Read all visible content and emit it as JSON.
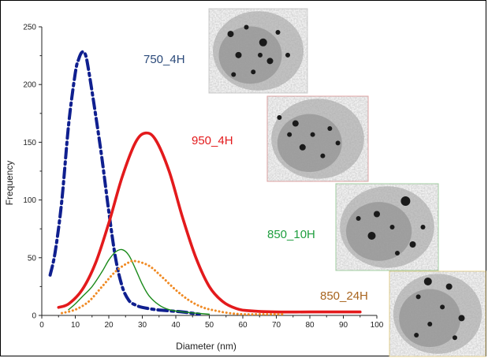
{
  "chart_data": {
    "type": "line",
    "title": "",
    "xlabel": "Diameter (nm)",
    "ylabel": "Frequency",
    "xlim": [
      0,
      100
    ],
    "ylim": [
      0,
      250
    ],
    "xticks": [
      0,
      10,
      20,
      30,
      40,
      50,
      60,
      70,
      80,
      90,
      100
    ],
    "yticks": [
      0,
      50,
      100,
      150,
      200,
      250
    ],
    "grid": false,
    "legend": "inline labels beside TEM image insets",
    "series": [
      {
        "name": "750_4H",
        "color": "#0f1f8f",
        "style": "dash-dot",
        "x": [
          2.5,
          4,
          6,
          8,
          10,
          11,
          12,
          13,
          14,
          16,
          18,
          20,
          22,
          24,
          26,
          28,
          30,
          34,
          38,
          42,
          47
        ],
        "y": [
          35,
          55,
          100,
          165,
          210,
          222,
          228,
          226,
          212,
          175,
          135,
          90,
          50,
          25,
          13,
          9,
          7,
          5,
          4,
          3,
          1
        ]
      },
      {
        "name": "950_4H",
        "color": "#e31a1c",
        "style": "solid-thick",
        "x": [
          5,
          8,
          12,
          16,
          20,
          24,
          28,
          31,
          34,
          38,
          42,
          46,
          50,
          54,
          58,
          62,
          70,
          80,
          95
        ],
        "y": [
          7,
          10,
          22,
          45,
          80,
          120,
          150,
          158,
          152,
          125,
          85,
          50,
          25,
          12,
          6,
          4,
          3,
          3,
          3
        ]
      },
      {
        "name": "850_10H",
        "color": "#1a8a1a",
        "style": "solid-thin",
        "x": [
          8,
          10,
          12,
          15,
          18,
          20,
          22,
          24,
          26,
          28,
          30,
          32,
          35,
          38,
          42,
          46,
          50
        ],
        "y": [
          5,
          10,
          16,
          25,
          38,
          48,
          55,
          57,
          52,
          40,
          27,
          17,
          9,
          5,
          3,
          2,
          1
        ]
      },
      {
        "name": "850_24H",
        "color": "#f08a24",
        "style": "dotted",
        "x": [
          6,
          10,
          14,
          18,
          22,
          26,
          28,
          32,
          36,
          40,
          44,
          48,
          52,
          56,
          60,
          65,
          72
        ],
        "y": [
          2,
          5,
          12,
          25,
          38,
          46,
          47,
          43,
          33,
          22,
          13,
          7,
          4,
          2,
          1,
          1,
          1
        ]
      }
    ],
    "labels": [
      {
        "text": "750_4H",
        "color": "#2b4a7a"
      },
      {
        "text": "950_4H",
        "color": "#e31a1c"
      },
      {
        "text": "850_10H",
        "color": "#1f9e3f"
      },
      {
        "text": "850_24H",
        "color": "#a8641e"
      }
    ]
  }
}
